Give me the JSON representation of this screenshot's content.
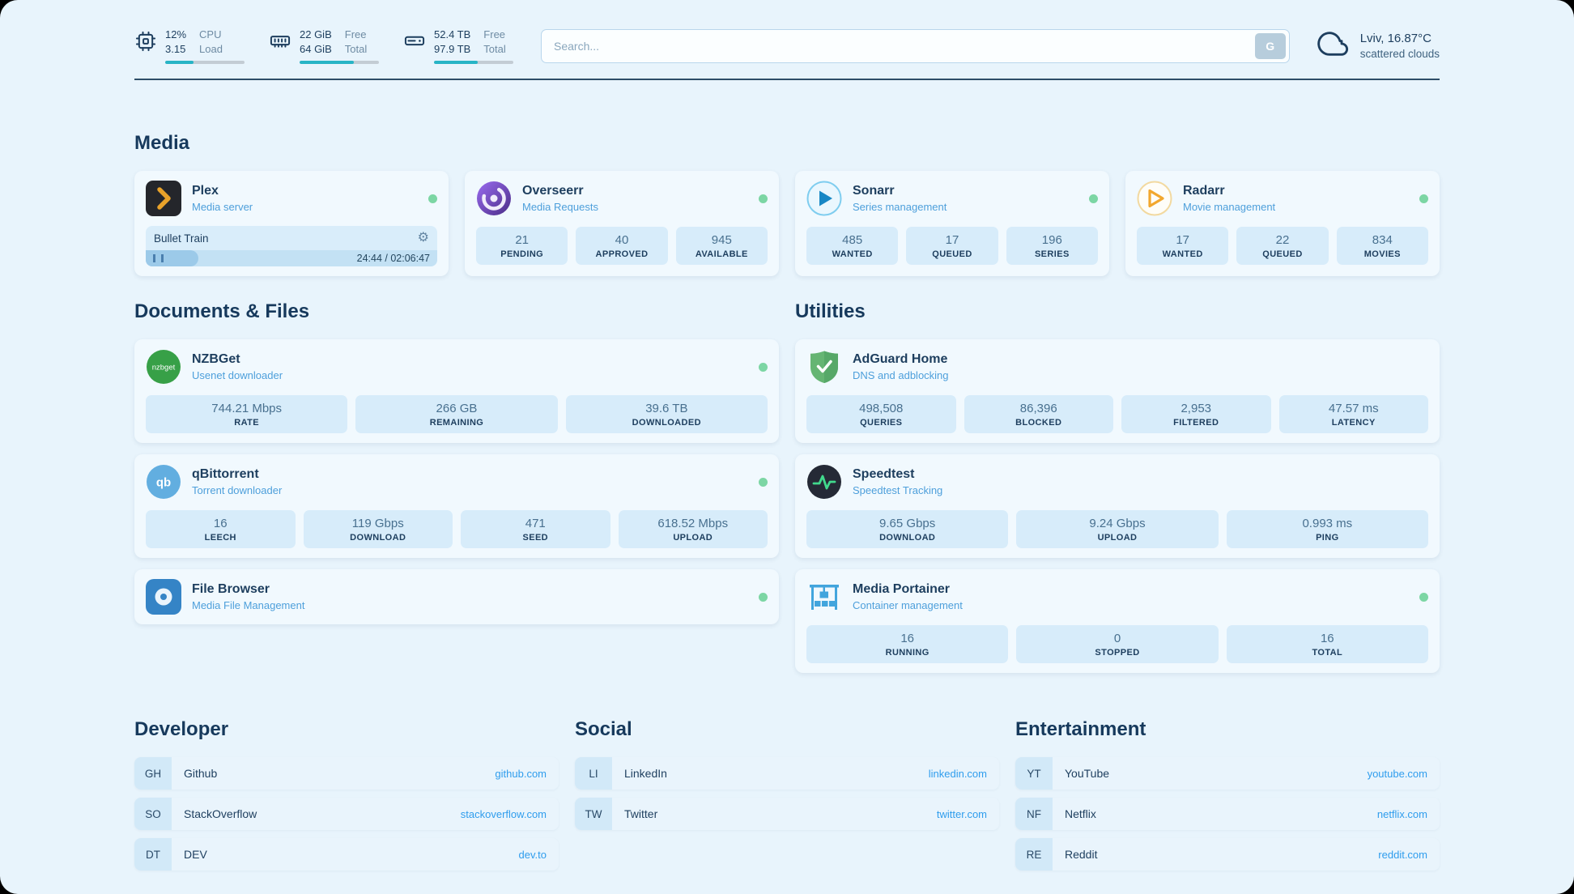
{
  "topbar": {
    "cpu": {
      "icon": "cpu-icon",
      "value": "12%",
      "value2": "3.15",
      "label": "CPU",
      "label2": "Load",
      "progress": 36
    },
    "ram": {
      "icon": "ram-icon",
      "value": "22 GiB",
      "value2": "64 GiB",
      "label": "Free",
      "label2": "Total",
      "progress": 68
    },
    "disk": {
      "icon": "disk-icon",
      "value": "52.4 TB",
      "value2": "97.9 TB",
      "label": "Free",
      "label2": "Total",
      "progress": 55
    },
    "search": {
      "placeholder": "Search...",
      "button_label": "G"
    },
    "weather": {
      "icon": "cloud-icon",
      "location": "Lviv, 16.87°C",
      "condition": "scattered clouds"
    }
  },
  "colors": {
    "accent_teal": "#27b4c6",
    "status_online": "#7cd6a4",
    "link_blue": "#2f9ded",
    "subtitle_blue": "#4d9fdb"
  },
  "sections": {
    "media": {
      "title": "Media",
      "apps": [
        {
          "name": "Plex",
          "subtitle": "Media server",
          "online": true,
          "player": {
            "title": "Bullet Train",
            "time": "24:44 / 02:06:47",
            "progress": 18
          }
        },
        {
          "name": "Overseerr",
          "subtitle": "Media Requests",
          "online": true,
          "stats": [
            {
              "value": "21",
              "label": "PENDING"
            },
            {
              "value": "40",
              "label": "APPROVED"
            },
            {
              "value": "945",
              "label": "AVAILABLE"
            }
          ]
        },
        {
          "name": "Sonarr",
          "subtitle": "Series management",
          "online": true,
          "stats": [
            {
              "value": "485",
              "label": "WANTED"
            },
            {
              "value": "17",
              "label": "QUEUED"
            },
            {
              "value": "196",
              "label": "SERIES"
            }
          ]
        },
        {
          "name": "Radarr",
          "subtitle": "Movie management",
          "online": true,
          "stats": [
            {
              "value": "17",
              "label": "WANTED"
            },
            {
              "value": "22",
              "label": "QUEUED"
            },
            {
              "value": "834",
              "label": "MOVIES"
            }
          ]
        }
      ]
    },
    "documents": {
      "title": "Documents & Files",
      "apps": [
        {
          "name": "NZBGet",
          "subtitle": "Usenet downloader",
          "online": true,
          "icon_text": "nzbget",
          "stats": [
            {
              "value": "744.21 Mbps",
              "label": "RATE"
            },
            {
              "value": "266 GB",
              "label": "REMAINING"
            },
            {
              "value": "39.6 TB",
              "label": "DOWNLOADED"
            }
          ]
        },
        {
          "name": "qBittorrent",
          "subtitle": "Torrent downloader",
          "online": true,
          "icon_text": "qb",
          "stats": [
            {
              "value": "16",
              "label": "LEECH"
            },
            {
              "value": "119 Gbps",
              "label": "DOWNLOAD"
            },
            {
              "value": "471",
              "label": "SEED"
            },
            {
              "value": "618.52 Mbps",
              "label": "UPLOAD"
            }
          ]
        },
        {
          "name": "File Browser",
          "subtitle": "Media File Management",
          "online": true,
          "stats": []
        }
      ]
    },
    "utilities": {
      "title": "Utilities",
      "apps": [
        {
          "name": "AdGuard Home",
          "subtitle": "DNS and adblocking",
          "online": false,
          "stats": [
            {
              "value": "498,508",
              "label": "QUERIES"
            },
            {
              "value": "86,396",
              "label": "BLOCKED"
            },
            {
              "value": "2,953",
              "label": "FILTERED"
            },
            {
              "value": "47.57 ms",
              "label": "LATENCY"
            }
          ]
        },
        {
          "name": "Speedtest",
          "subtitle": "Speedtest Tracking",
          "online": false,
          "stats": [
            {
              "value": "9.65 Gbps",
              "label": "DOWNLOAD"
            },
            {
              "value": "9.24 Gbps",
              "label": "UPLOAD"
            },
            {
              "value": "0.993 ms",
              "label": "PING"
            }
          ]
        },
        {
          "name": "Media Portainer",
          "subtitle": "Container management",
          "online": true,
          "stats": [
            {
              "value": "16",
              "label": "RUNNING"
            },
            {
              "value": "0",
              "label": "STOPPED"
            },
            {
              "value": "16",
              "label": "TOTAL"
            }
          ]
        }
      ]
    },
    "bookmarks": [
      {
        "title": "Developer",
        "links": [
          {
            "abbr": "GH",
            "name": "Github",
            "url": "github.com"
          },
          {
            "abbr": "SO",
            "name": "StackOverflow",
            "url": "stackoverflow.com"
          },
          {
            "abbr": "DT",
            "name": "DEV",
            "url": "dev.to"
          }
        ]
      },
      {
        "title": "Social",
        "links": [
          {
            "abbr": "LI",
            "name": "LinkedIn",
            "url": "linkedin.com"
          },
          {
            "abbr": "TW",
            "name": "Twitter",
            "url": "twitter.com"
          }
        ]
      },
      {
        "title": "Entertainment",
        "links": [
          {
            "abbr": "YT",
            "name": "YouTube",
            "url": "youtube.com"
          },
          {
            "abbr": "NF",
            "name": "Netflix",
            "url": "netflix.com"
          },
          {
            "abbr": "RE",
            "name": "Reddit",
            "url": "reddit.com"
          }
        ]
      }
    ]
  }
}
